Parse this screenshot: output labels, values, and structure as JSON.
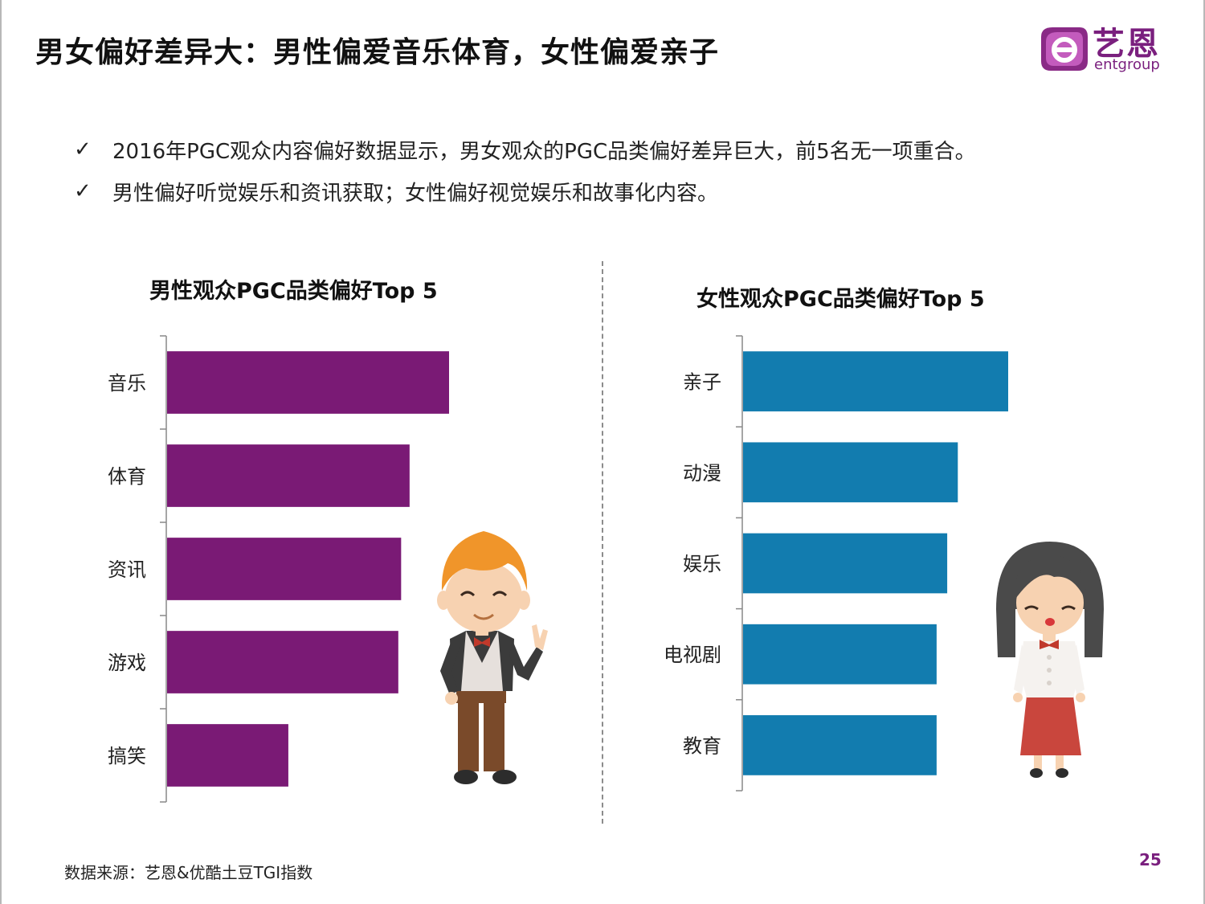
{
  "title": "男女偏好差异大：男性偏爱音乐体育，女性偏爱亲子",
  "logo": {
    "cn": "艺恩",
    "en": "entgroup"
  },
  "bullets": [
    "2016年PGC观众内容偏好数据显示，男女观众的PGC品类偏好差异巨大，前5名无一项重合。",
    "男性偏好听觉娱乐和资讯获取；女性偏好视觉娱乐和故事化内容。"
  ],
  "check_symbol": "✓",
  "chart_data": [
    {
      "type": "bar",
      "orientation": "horizontal",
      "title": "男性观众PGC品类偏好Top 5",
      "categories": [
        "音乐",
        "体育",
        "资讯",
        "游戏",
        "搞笑"
      ],
      "values": [
        100,
        86,
        83,
        82,
        43
      ],
      "color": "#7a1a75"
    },
    {
      "type": "bar",
      "orientation": "horizontal",
      "title": "女性观众PGC品类偏好Top 5",
      "categories": [
        "亲子",
        "动漫",
        "娱乐",
        "电视剧",
        "教育"
      ],
      "values": [
        100,
        81,
        77,
        73,
        73
      ],
      "color": "#127caf"
    }
  ],
  "source": "数据来源：艺恩&优酷土豆TGI指数",
  "page_number": "25"
}
